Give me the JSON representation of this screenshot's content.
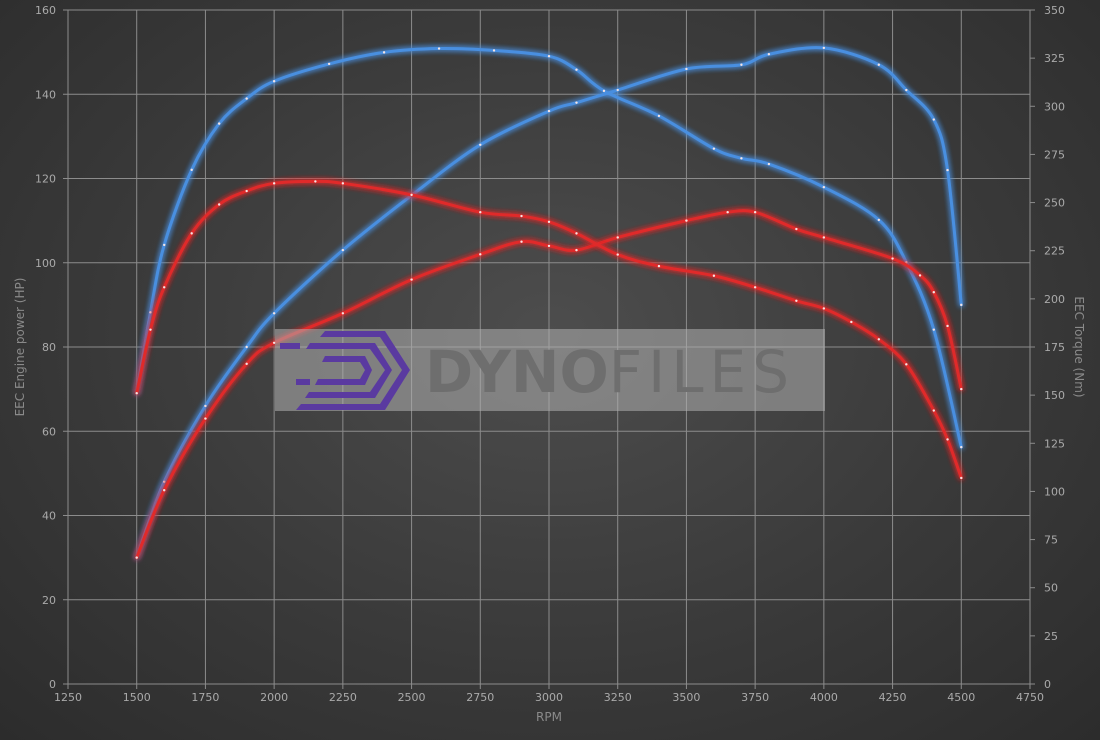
{
  "chart_data": {
    "type": "line",
    "xlabel": "RPM",
    "ylabel_left": "EEC Engine power (HP)",
    "ylabel_right": "EEC Torque (Nm)",
    "xlim": [
      1250,
      4750
    ],
    "xticks": [
      1250,
      1500,
      1750,
      2000,
      2250,
      2500,
      2750,
      3000,
      3250,
      3500,
      3750,
      4000,
      4250,
      4500,
      4750
    ],
    "ylim_left": [
      0,
      160
    ],
    "yticks_left": [
      0,
      20,
      40,
      60,
      80,
      100,
      120,
      140,
      160
    ],
    "ylim_right": [
      0,
      350
    ],
    "yticks_right": [
      0,
      25,
      50,
      75,
      100,
      125,
      150,
      175,
      200,
      225,
      250,
      275,
      300,
      325,
      350
    ],
    "grid": true,
    "watermark": {
      "text_bold": "DYNO",
      "text_light": "FILES"
    },
    "colors": {
      "blue": "#4a8fe0",
      "red": "#e02a2a",
      "grid": "#8c8c8c",
      "logo": "#5a3aa0"
    },
    "series": [
      {
        "axis": "left",
        "color": "blue",
        "x": [
          1500,
          1600,
          1750,
          1900,
          2000,
          2250,
          2500,
          2750,
          3000,
          3100,
          3250,
          3500,
          3700,
          3800,
          4000,
          4200,
          4300,
          4400,
          4450,
          4500
        ],
        "y": [
          30,
          48,
          66,
          80,
          88,
          103,
          116,
          128,
          136,
          138,
          141,
          146,
          147,
          149.5,
          151,
          147,
          141,
          134,
          122,
          90
        ]
      },
      {
        "axis": "right",
        "color": "blue",
        "x": [
          1500,
          1550,
          1600,
          1700,
          1800,
          1900,
          2000,
          2200,
          2400,
          2600,
          2800,
          3000,
          3100,
          3200,
          3400,
          3600,
          3700,
          3800,
          4000,
          4200,
          4300,
          4400,
          4500
        ],
        "y": [
          151,
          193,
          228,
          267,
          291,
          304,
          313,
          322,
          328,
          330,
          329,
          326,
          319,
          308,
          295,
          278,
          273,
          270,
          258,
          241,
          219,
          184,
          123
        ]
      },
      {
        "axis": "left",
        "color": "red",
        "x": [
          1500,
          1600,
          1750,
          1900,
          2000,
          2250,
          2500,
          2750,
          2900,
          3000,
          3100,
          3250,
          3500,
          3650,
          3750,
          3900,
          4000,
          4250,
          4350,
          4400,
          4450,
          4500
        ],
        "y": [
          30,
          46,
          63,
          76,
          81,
          88,
          96,
          102,
          105,
          104,
          103,
          106,
          110,
          112,
          112,
          108,
          106,
          101,
          97,
          93,
          85,
          70
        ]
      },
      {
        "axis": "right",
        "color": "red",
        "x": [
          1500,
          1550,
          1600,
          1700,
          1800,
          1900,
          2000,
          2150,
          2250,
          2500,
          2750,
          2900,
          3000,
          3100,
          3250,
          3400,
          3600,
          3750,
          3900,
          4000,
          4100,
          4200,
          4300,
          4400,
          4450,
          4500
        ],
        "y": [
          151,
          184,
          206,
          234,
          249,
          256,
          260,
          261,
          260,
          254,
          245,
          243,
          240,
          234,
          223,
          217,
          212,
          206,
          199,
          195,
          188,
          179,
          166,
          142,
          127,
          107
        ]
      }
    ]
  }
}
